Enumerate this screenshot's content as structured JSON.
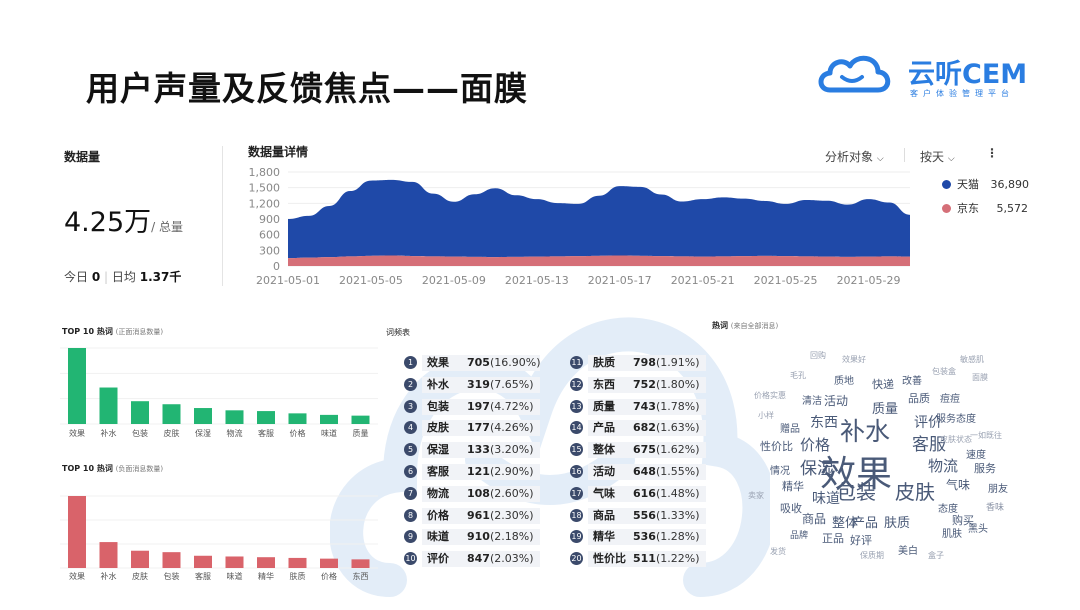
{
  "slide": {
    "title": "用户声量及反馈焦点——面膜",
    "brand": {
      "name": "云听CEM",
      "subtitle": "客户体验管理平台"
    }
  },
  "summary": {
    "label": "数据量",
    "total_value": "4.25万",
    "total_unit": "/ 总量",
    "today_label": "今日",
    "today_value": "0",
    "avg_label": "日均",
    "avg_value": "1.37千"
  },
  "trend": {
    "label": "数据量详情",
    "controls": {
      "analysis": "分析对象",
      "period": "按天",
      "more": "⋮"
    },
    "legend": [
      {
        "name": "天猫",
        "value": "36,890",
        "color": "#1f49a8"
      },
      {
        "name": "京东",
        "value": "5,572",
        "color": "#d56f78"
      }
    ]
  },
  "top_positive": {
    "title": "TOP 10 热词",
    "subtitle": "(正面消息数量)"
  },
  "top_negative": {
    "title": "TOP 10 热词",
    "subtitle": "(负面消息数量)"
  },
  "freq_table": {
    "label": "词频表",
    "rows": [
      {
        "rank": "1",
        "word": "效果",
        "count": "705",
        "pct": "(16.90%)"
      },
      {
        "rank": "2",
        "word": "补水",
        "count": "319",
        "pct": "(7.65%)"
      },
      {
        "rank": "3",
        "word": "包装",
        "count": "197",
        "pct": "(4.72%)"
      },
      {
        "rank": "4",
        "word": "皮肤",
        "count": "177",
        "pct": "(4.26%)"
      },
      {
        "rank": "5",
        "word": "保湿",
        "count": "133",
        "pct": "(3.20%)"
      },
      {
        "rank": "6",
        "word": "客服",
        "count": "121",
        "pct": "(2.90%)"
      },
      {
        "rank": "7",
        "word": "物流",
        "count": "108",
        "pct": "(2.60%)"
      },
      {
        "rank": "8",
        "word": "价格",
        "count": "961",
        "pct": "(2.30%)"
      },
      {
        "rank": "9",
        "word": "味道",
        "count": "910",
        "pct": "(2.18%)"
      },
      {
        "rank": "10",
        "word": "评价",
        "count": "847",
        "pct": "(2.03%)"
      },
      {
        "rank": "11",
        "word": "肤质",
        "count": "798",
        "pct": "(1.91%)"
      },
      {
        "rank": "12",
        "word": "东西",
        "count": "752",
        "pct": "(1.80%)"
      },
      {
        "rank": "13",
        "word": "质量",
        "count": "743",
        "pct": "(1.78%)"
      },
      {
        "rank": "14",
        "word": "产品",
        "count": "682",
        "pct": "(1.63%)"
      },
      {
        "rank": "15",
        "word": "整体",
        "count": "675",
        "pct": "(1.62%)"
      },
      {
        "rank": "16",
        "word": "活动",
        "count": "648",
        "pct": "(1.55%)"
      },
      {
        "rank": "17",
        "word": "气味",
        "count": "616",
        "pct": "(1.48%)"
      },
      {
        "rank": "18",
        "word": "商品",
        "count": "556",
        "pct": "(1.33%)"
      },
      {
        "rank": "19",
        "word": "精华",
        "count": "536",
        "pct": "(1.28%)"
      },
      {
        "rank": "20",
        "word": "性价比",
        "count": "511",
        "pct": "(1.22%)"
      }
    ]
  },
  "word_cloud": {
    "title": "热词",
    "subtitle": "(来自全部消息)",
    "words": [
      {
        "text": "效果",
        "size": 36,
        "color": "#4a5a78"
      },
      {
        "text": "补水",
        "size": 25,
        "color": "#4a5a78"
      },
      {
        "text": "包装",
        "size": 20,
        "color": "#4a5a78"
      },
      {
        "text": "皮肤",
        "size": 20,
        "color": "#4a5a78"
      },
      {
        "text": "保湿",
        "size": 17,
        "color": "#4a5a78"
      },
      {
        "text": "客服",
        "size": 17,
        "color": "#4a5a78"
      },
      {
        "text": "物流",
        "size": 15,
        "color": "#4a5a78"
      },
      {
        "text": "价格",
        "size": 15,
        "color": "#4a5a78"
      },
      {
        "text": "味道",
        "size": 14,
        "color": "#4a5a78"
      },
      {
        "text": "评价",
        "size": 14,
        "color": "#4a5a78"
      },
      {
        "text": "东西",
        "size": 14,
        "color": "#4a5a78"
      },
      {
        "text": "质量",
        "size": 13,
        "color": "#4a5a78"
      },
      {
        "text": "产品",
        "size": 13,
        "color": "#4a5a78"
      },
      {
        "text": "整体",
        "size": 13,
        "color": "#4a5a78"
      },
      {
        "text": "肤质",
        "size": 13,
        "color": "#4a5a78"
      },
      {
        "text": "活动",
        "size": 12,
        "color": "#4a5a78"
      },
      {
        "text": "气味",
        "size": 12,
        "color": "#4a5a78"
      },
      {
        "text": "商品",
        "size": 12,
        "color": "#4a5a78"
      },
      {
        "text": "精华",
        "size": 11,
        "color": "#4a5a78"
      },
      {
        "text": "性价比",
        "size": 11,
        "color": "#4a5a78"
      },
      {
        "text": "服务态度",
        "size": 10,
        "color": "#4a5a78"
      },
      {
        "text": "品质",
        "size": 11,
        "color": "#4a5a78"
      },
      {
        "text": "快递",
        "size": 11,
        "color": "#4a5a78"
      },
      {
        "text": "改善",
        "size": 10,
        "color": "#4a5a78"
      },
      {
        "text": "痘痘",
        "size": 10,
        "color": "#4a5a78"
      },
      {
        "text": "清洁",
        "size": 10,
        "color": "#4a5a78"
      },
      {
        "text": "质地",
        "size": 10,
        "color": "#4a5a78"
      },
      {
        "text": "赠品",
        "size": 10,
        "color": "#4a5a78"
      },
      {
        "text": "速度",
        "size": 10,
        "color": "#4a5a78"
      },
      {
        "text": "情况",
        "size": 10,
        "color": "#4a5a78"
      },
      {
        "text": "服务",
        "size": 11,
        "color": "#4a5a78"
      },
      {
        "text": "朋友",
        "size": 10,
        "color": "#4a5a78"
      },
      {
        "text": "吸收",
        "size": 11,
        "color": "#4a5a78"
      },
      {
        "text": "态度",
        "size": 10,
        "color": "#4a5a78"
      },
      {
        "text": "购买",
        "size": 11,
        "color": "#4a5a78"
      },
      {
        "text": "黑头",
        "size": 10,
        "color": "#4a5a78"
      },
      {
        "text": "正品",
        "size": 11,
        "color": "#4a5a78"
      },
      {
        "text": "好评",
        "size": 11,
        "color": "#4a5a78"
      },
      {
        "text": "肌肤",
        "size": 10,
        "color": "#4a5a78"
      },
      {
        "text": "品牌",
        "size": 9,
        "color": "#4a5a78"
      },
      {
        "text": "美白",
        "size": 10,
        "color": "#4a5a78"
      },
      {
        "text": "香味",
        "size": 9,
        "color": "#8a93a6"
      },
      {
        "text": "小样",
        "size": 8,
        "color": "#9aa2b2"
      },
      {
        "text": "卖家",
        "size": 8,
        "color": "#9aa2b2"
      },
      {
        "text": "面膜",
        "size": 8,
        "color": "#9aa2b2"
      },
      {
        "text": "效果好",
        "size": 8,
        "color": "#9aa2b2"
      },
      {
        "text": "毛孔",
        "size": 8,
        "color": "#9aa2b2"
      },
      {
        "text": "包装盒",
        "size": 8,
        "color": "#9aa2b2"
      },
      {
        "text": "敏感肌",
        "size": 8,
        "color": "#9aa2b2"
      },
      {
        "text": "皮肤状态",
        "size": 8,
        "color": "#9aa2b2"
      },
      {
        "text": "价格实惠",
        "size": 8,
        "color": "#9aa2b2"
      },
      {
        "text": "保质期",
        "size": 8,
        "color": "#9aa2b2"
      },
      {
        "text": "发货",
        "size": 8,
        "color": "#9aa2b2"
      },
      {
        "text": "一如既往",
        "size": 8,
        "color": "#9aa2b2"
      },
      {
        "text": "回购",
        "size": 8,
        "color": "#9aa2b2"
      },
      {
        "text": "盒子",
        "size": 8,
        "color": "#9aa2b2"
      }
    ]
  },
  "chart_data": [
    {
      "type": "area",
      "title": "数据量详情",
      "x": [
        "2021-05-01",
        "2021-05-02",
        "2021-05-03",
        "2021-05-04",
        "2021-05-05",
        "2021-05-06",
        "2021-05-07",
        "2021-05-08",
        "2021-05-09",
        "2021-05-10",
        "2021-05-11",
        "2021-05-12",
        "2021-05-13",
        "2021-05-14",
        "2021-05-15",
        "2021-05-16",
        "2021-05-17",
        "2021-05-18",
        "2021-05-19",
        "2021-05-20",
        "2021-05-21",
        "2021-05-22",
        "2021-05-23",
        "2021-05-24",
        "2021-05-25",
        "2021-05-26",
        "2021-05-27",
        "2021-05-28",
        "2021-05-29",
        "2021-05-30",
        "2021-05-31"
      ],
      "x_tick_labels": [
        "2021-05-01",
        "2021-05-05",
        "2021-05-09",
        "2021-05-13",
        "2021-05-17",
        "2021-05-21",
        "2021-05-25",
        "2021-05-29"
      ],
      "y_ticks": [
        "0",
        "300",
        "600",
        "900",
        "1,200",
        "1,500",
        "1,800"
      ],
      "ylim": [
        0,
        1800
      ],
      "stacked": true,
      "series": [
        {
          "name": "京东",
          "color": "#d56f78",
          "values": [
            150,
            160,
            170,
            185,
            195,
            200,
            190,
            185,
            180,
            175,
            170,
            175,
            180,
            185,
            190,
            195,
            200,
            195,
            190,
            185,
            180,
            185,
            190,
            195,
            190,
            185,
            180,
            175,
            180,
            185,
            180
          ]
        },
        {
          "name": "天猫",
          "color": "#1f49a8",
          "values": [
            750,
            800,
            980,
            1250,
            1440,
            1450,
            1420,
            1200,
            1050,
            1200,
            1320,
            1180,
            1100,
            1020,
            1000,
            1150,
            1330,
            1320,
            1180,
            1050,
            1100,
            1130,
            1100,
            1050,
            1000,
            1080,
            1070,
            1000,
            1100,
            1030,
            800
          ]
        }
      ]
    },
    {
      "type": "bar",
      "title": "TOP 10 热词",
      "subtitle": "(正面消息数量)",
      "color": "#22b573",
      "categories": [
        "效果",
        "补水",
        "包装",
        "皮肤",
        "保湿",
        "物流",
        "客服",
        "价格",
        "味道",
        "质量"
      ],
      "values": [
        100,
        48,
        30,
        26,
        21,
        18,
        17,
        14,
        12,
        11
      ]
    },
    {
      "type": "bar",
      "title": "TOP 10 热词",
      "subtitle": "(负面消息数量)",
      "color": "#d9636a",
      "categories": [
        "效果",
        "补水",
        "皮肤",
        "包装",
        "客服",
        "味道",
        "精华",
        "肤质",
        "价格",
        "东西"
      ],
      "values": [
        100,
        36,
        24,
        22,
        17,
        16,
        15,
        14,
        13,
        12
      ]
    }
  ]
}
